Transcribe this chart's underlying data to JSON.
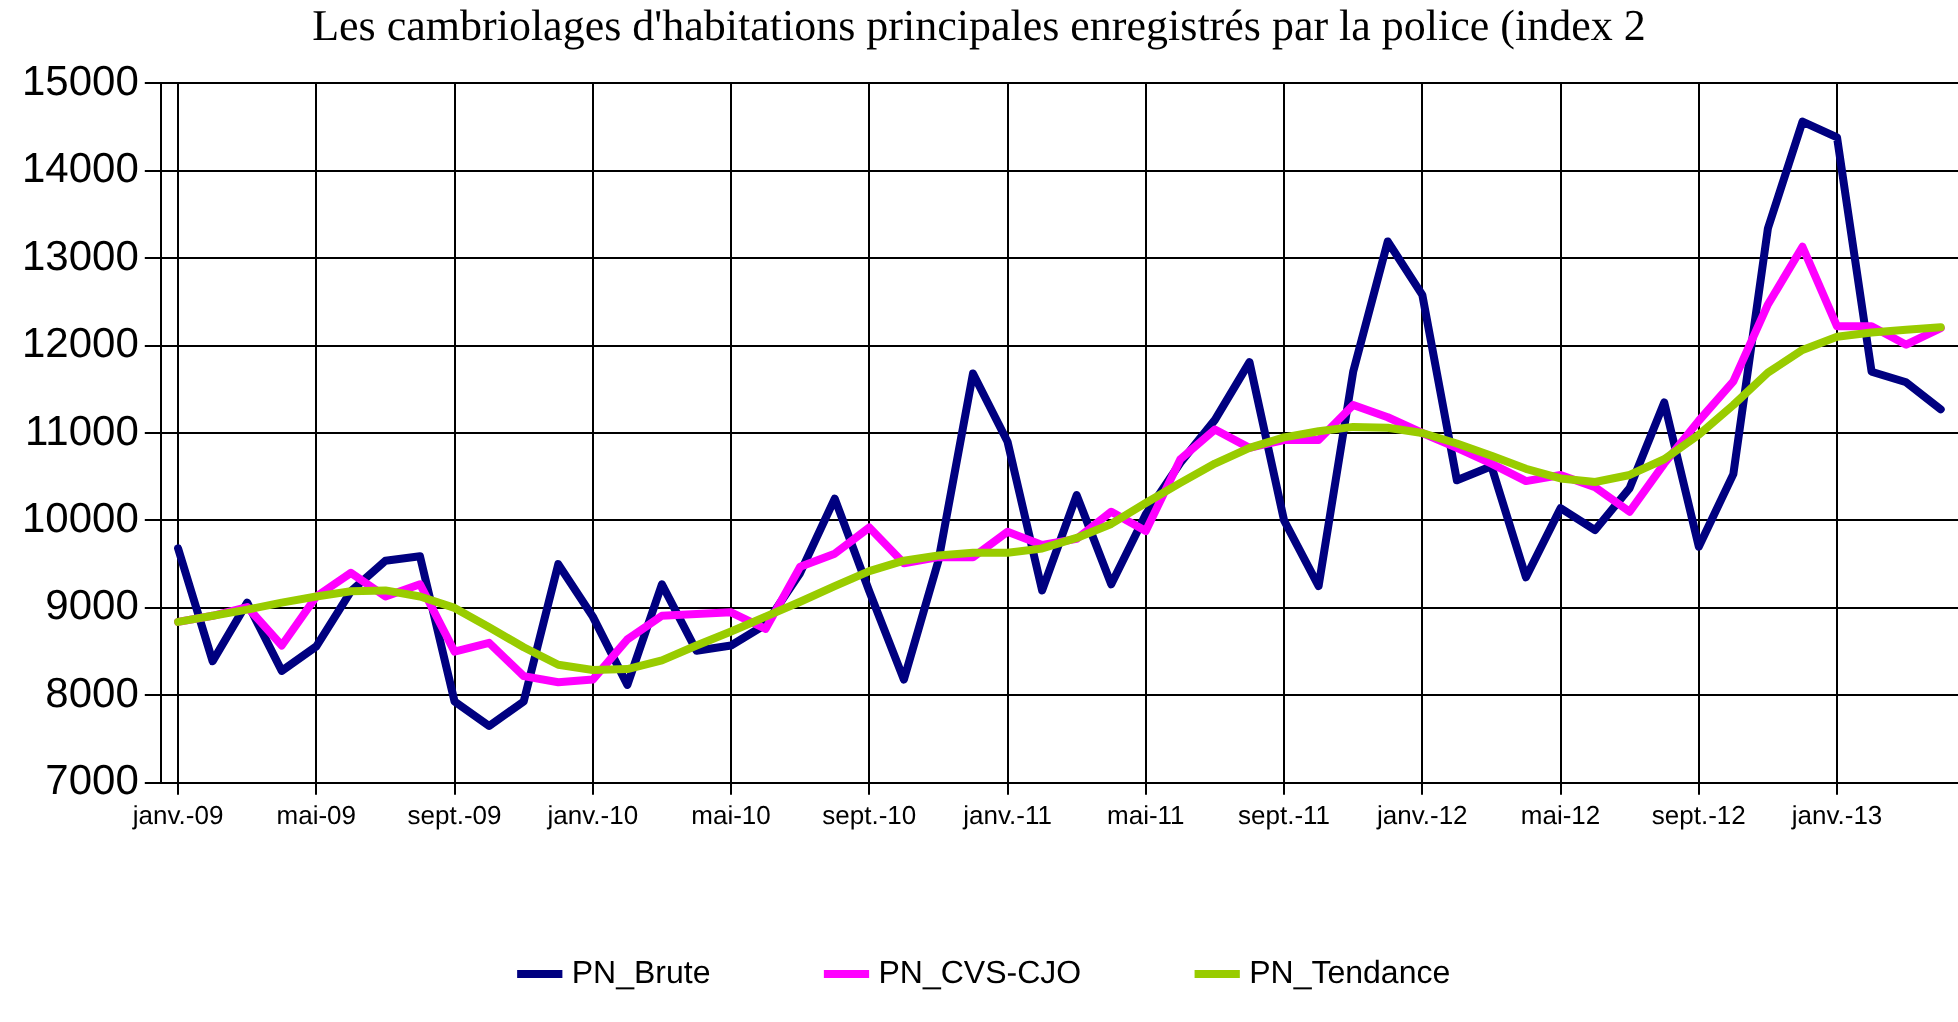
{
  "chart_data": {
    "type": "line",
    "title": "Les cambriolages d'habitations principales enregistrés par la police (index 2",
    "categories": [
      "janv.-09",
      null,
      null,
      null,
      "mai-09",
      null,
      null,
      null,
      "sept.-09",
      null,
      null,
      null,
      "janv.-10",
      null,
      null,
      null,
      "mai-10",
      null,
      null,
      null,
      "sept.-10",
      null,
      null,
      null,
      "janv.-11",
      null,
      null,
      null,
      "mai-11",
      null,
      null,
      null,
      "sept.-11",
      null,
      null,
      null,
      "janv.-12",
      null,
      null,
      null,
      "mai-12",
      null,
      null,
      null,
      "sept.-12",
      null,
      null,
      null,
      "janv.-13",
      null,
      null,
      null
    ],
    "series": [
      {
        "name": "PN_Brute",
        "color": "#000080",
        "values": [
          9680,
          8390,
          9060,
          8280,
          8560,
          9190,
          9540,
          9590,
          7930,
          7650,
          7930,
          9500,
          8900,
          8120,
          9270,
          8510,
          8570,
          8810,
          9400,
          10250,
          9190,
          8180,
          9540,
          11680,
          10900,
          9200,
          10290,
          9270,
          10070,
          10660,
          11150,
          11810,
          10000,
          9250,
          11700,
          13190,
          12580,
          10460,
          10620,
          9350,
          10140,
          9890,
          10370,
          11350,
          9700,
          10530,
          13340,
          14560,
          14380,
          11700,
          11580,
          11270
        ]
      },
      {
        "name": "PN_CVS-CJO",
        "color": "#ff00ff",
        "values": [
          8840,
          8910,
          9010,
          8570,
          9130,
          9400,
          9130,
          9270,
          8500,
          8600,
          8220,
          8150,
          8180,
          8640,
          8910,
          8930,
          8950,
          8760,
          9470,
          9620,
          9920,
          9510,
          9580,
          9580,
          9870,
          9720,
          9790,
          10100,
          9880,
          10700,
          11040,
          10830,
          10920,
          10920,
          11320,
          11180,
          11000,
          10830,
          10650,
          10450,
          10520,
          10380,
          10100,
          10650,
          11140,
          11590,
          12470,
          13130,
          12220,
          12220,
          12010,
          12200
        ]
      },
      {
        "name": "PN_Tendance",
        "color": "#99cc00",
        "values": [
          8840,
          8910,
          8980,
          9060,
          9130,
          9190,
          9200,
          9130,
          9000,
          8780,
          8550,
          8350,
          8290,
          8300,
          8400,
          8570,
          8730,
          8900,
          9070,
          9250,
          9420,
          9540,
          9600,
          9630,
          9630,
          9680,
          9800,
          9960,
          10200,
          10430,
          10650,
          10830,
          10950,
          11020,
          11070,
          11060,
          11000,
          10880,
          10740,
          10590,
          10480,
          10440,
          10520,
          10700,
          10980,
          11320,
          11690,
          11950,
          12100,
          12150,
          12180,
          12210
        ]
      }
    ],
    "ylim": [
      7000,
      15000
    ],
    "yticks": [
      7000,
      8000,
      9000,
      10000,
      11000,
      12000,
      13000,
      14000,
      15000
    ],
    "grid": true,
    "legend": "bottom",
    "marker": "none",
    "line_style": "solid"
  }
}
